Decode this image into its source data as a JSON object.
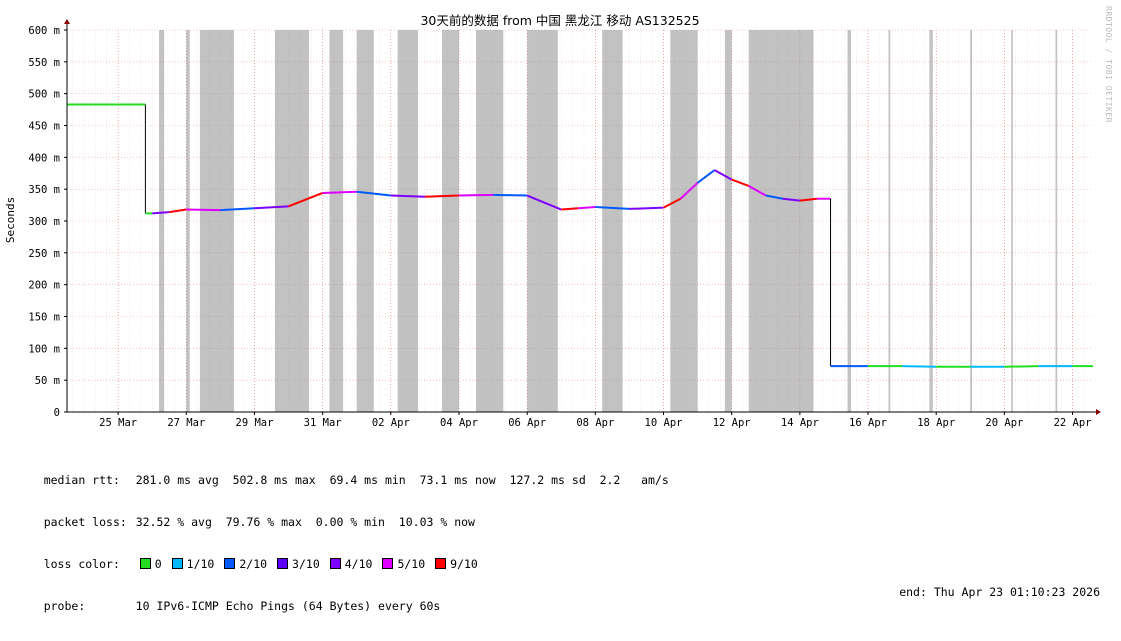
{
  "chart_data": {
    "type": "line",
    "title": "30天前的数据 from 中国 黑龙江 移动 AS132525",
    "ylabel": "Seconds",
    "ylim": [
      0,
      0.6
    ],
    "y_ticks": [
      "0",
      "50 m",
      "100 m",
      "150 m",
      "200 m",
      "250 m",
      "300 m",
      "350 m",
      "400 m",
      "450 m",
      "500 m",
      "550 m",
      "600 m"
    ],
    "x_ticks": [
      "25 Mar",
      "27 Mar",
      "29 Mar",
      "31 Mar",
      "02 Apr",
      "04 Apr",
      "06 Apr",
      "08 Apr",
      "10 Apr",
      "12 Apr",
      "14 Apr",
      "16 Apr",
      "18 Apr",
      "20 Apr",
      "22 Apr"
    ],
    "xlim_days": [
      -1.5,
      28.6
    ],
    "grid": true,
    "series": [
      {
        "name": "median rtt",
        "x_days": [
          -1.5,
          0.0,
          0.8,
          1.0,
          1.5,
          2.0,
          3.0,
          4.0,
          5.0,
          6.0,
          7.0,
          8.0,
          9.0,
          10.0,
          11.0,
          12.0,
          13.0,
          13.5,
          14.0,
          15.0,
          16.0,
          16.5,
          17.0,
          17.5,
          18.0,
          18.5,
          19.0,
          19.5,
          20.0,
          20.5,
          20.9,
          22.0,
          23.0,
          24.0,
          25.0,
          26.0,
          27.0,
          28.0,
          28.6
        ],
        "y_ms": [
          483,
          483,
          483,
          312,
          314,
          318,
          317,
          320,
          323,
          344,
          346,
          340,
          338,
          340,
          341,
          340,
          318,
          320,
          322,
          319,
          321,
          335,
          360,
          380,
          365,
          355,
          340,
          335,
          332,
          335,
          335,
          72,
          72,
          71,
          71,
          71,
          72,
          72,
          72
        ]
      }
    ],
    "loss_gaps_days": [
      [
        1.2,
        1.35
      ],
      [
        2.0,
        2.1
      ],
      [
        2.4,
        3.4
      ],
      [
        4.6,
        5.6
      ],
      [
        6.2,
        6.6
      ],
      [
        7.0,
        7.5
      ],
      [
        8.2,
        8.8
      ],
      [
        9.5,
        10.0
      ],
      [
        10.5,
        11.3
      ],
      [
        12.0,
        12.9
      ],
      [
        14.2,
        14.8
      ],
      [
        16.2,
        17.0
      ],
      [
        17.8,
        18.0
      ],
      [
        18.5,
        20.4
      ],
      [
        21.4,
        21.5
      ],
      [
        22.6,
        22.65
      ],
      [
        23.8,
        23.9
      ],
      [
        25.0,
        25.05
      ],
      [
        26.2,
        26.25
      ],
      [
        27.5,
        27.55
      ]
    ],
    "legend_colors": {
      "0": "#22dd22",
      "1/10": "#00b8ff",
      "2/10": "#0059ff",
      "3/10": "#5e00ff",
      "4/10": "#7e00ff",
      "5/10": "#dd00ff",
      "9/10": "#ff0000"
    }
  },
  "side_credit": "RRDTOOL / TOBI OETIKER",
  "legend": {
    "median_label": "median rtt:",
    "median_value": "281.0 ms avg  502.8 ms max  69.4 ms min  73.1 ms now  127.2 ms sd  2.2   am/s",
    "loss_label": "packet loss:",
    "loss_value": "32.52 % avg  79.76 % max  0.00 % min  10.03 % now",
    "color_label": "loss color:",
    "colors": [
      {
        "label": "0",
        "color": "#22dd22"
      },
      {
        "label": "1/10",
        "color": "#00b8ff"
      },
      {
        "label": "2/10",
        "color": "#0059ff"
      },
      {
        "label": "3/10",
        "color": "#5e00ff"
      },
      {
        "label": "4/10",
        "color": "#7e00ff"
      },
      {
        "label": "5/10",
        "color": "#dd00ff"
      },
      {
        "label": "9/10",
        "color": "#ff0000"
      }
    ],
    "probe_label": "probe:",
    "probe_value": "10 IPv6-ICMP Echo Pings (64 Bytes) every 60s",
    "end_text": "end: Thu Apr 23 01:10:23 2026"
  }
}
